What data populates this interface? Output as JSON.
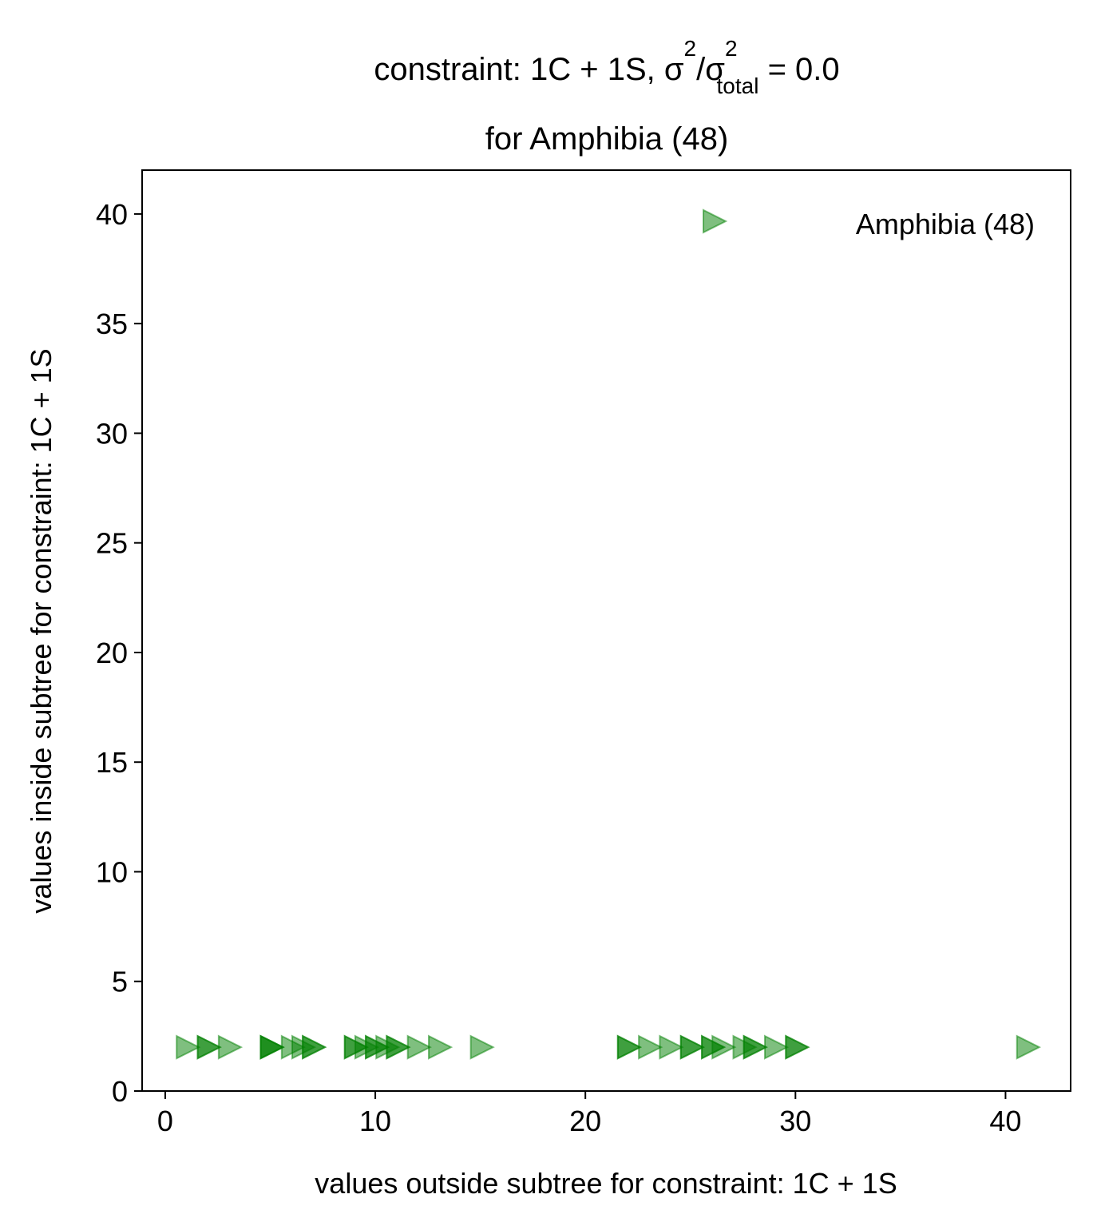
{
  "chart_data": {
    "type": "scatter",
    "title": {
      "line1_prefix": "constraint: 1C + 1S, σ",
      "sup1": "2",
      "slash": "/σ",
      "sup2": "2",
      "sub": "total",
      "suffix": " =  0.0",
      "line2": "for Amphibia (48)"
    },
    "xlabel": "values outside subtree for constraint: 1C + 1S",
    "ylabel": "values inside subtree for constraint: 1C + 1S",
    "xlim": [
      -1.1,
      43.1
    ],
    "ylim": [
      0,
      42
    ],
    "xticks": [
      0,
      10,
      20,
      30,
      40
    ],
    "yticks": [
      0,
      5,
      10,
      15,
      20,
      25,
      30,
      35,
      40
    ],
    "grid": false,
    "legend": {
      "position": "top-right",
      "entries": [
        "Amphibia (48)"
      ]
    },
    "series": [
      {
        "name": "Amphibia (48)",
        "marker": "triangle-right",
        "color": "#008000",
        "alpha": 0.5,
        "points": [
          [
            1,
            2
          ],
          [
            2,
            2
          ],
          [
            2,
            2
          ],
          [
            3,
            2
          ],
          [
            5,
            2
          ],
          [
            5,
            2
          ],
          [
            5,
            2
          ],
          [
            6,
            2
          ],
          [
            6.5,
            2
          ],
          [
            7,
            2
          ],
          [
            7,
            2
          ],
          [
            9,
            2
          ],
          [
            9,
            2
          ],
          [
            9.5,
            2
          ],
          [
            10,
            2
          ],
          [
            10,
            2
          ],
          [
            10.5,
            2
          ],
          [
            11,
            2
          ],
          [
            11,
            2
          ],
          [
            12,
            2
          ],
          [
            13,
            2
          ],
          [
            15,
            2
          ],
          [
            22,
            2
          ],
          [
            22,
            2
          ],
          [
            23,
            2
          ],
          [
            24,
            2
          ],
          [
            25,
            2
          ],
          [
            25,
            2
          ],
          [
            26,
            2
          ],
          [
            26,
            2
          ],
          [
            26.5,
            2
          ],
          [
            27.5,
            2
          ],
          [
            28,
            2
          ],
          [
            28,
            2
          ],
          [
            29,
            2
          ],
          [
            30,
            2
          ],
          [
            30,
            2
          ],
          [
            41,
            2
          ]
        ]
      }
    ]
  }
}
